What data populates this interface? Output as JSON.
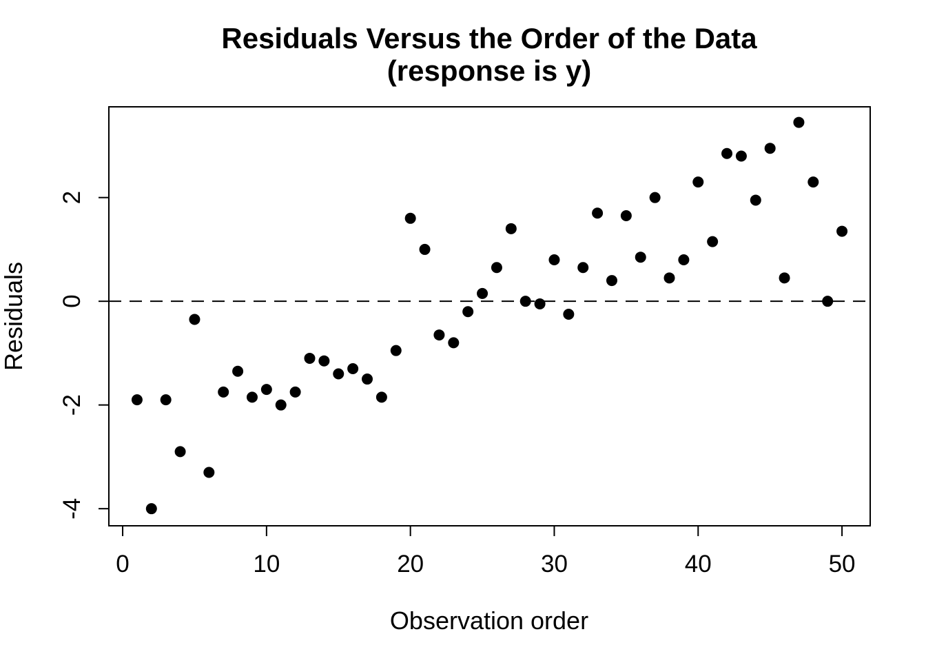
{
  "chart_data": {
    "type": "scatter",
    "title": "Residuals Versus the Order of the Data",
    "subtitle": "(response is y)",
    "xlabel": "Observation order",
    "ylabel": "Residuals",
    "x": [
      1,
      2,
      3,
      4,
      5,
      6,
      7,
      8,
      9,
      10,
      11,
      12,
      13,
      14,
      15,
      16,
      17,
      18,
      19,
      20,
      21,
      22,
      23,
      24,
      25,
      26,
      27,
      28,
      29,
      30,
      31,
      32,
      33,
      34,
      35,
      36,
      37,
      38,
      39,
      40,
      41,
      42,
      43,
      44,
      45,
      46,
      47,
      48,
      49,
      50
    ],
    "y": [
      -1.9,
      -4.0,
      -1.9,
      -2.9,
      -0.35,
      -3.3,
      -1.75,
      -1.35,
      -1.85,
      -1.7,
      -2.0,
      -1.75,
      -1.1,
      -1.15,
      -1.4,
      -1.3,
      -1.5,
      -1.85,
      -0.95,
      1.6,
      1.0,
      -0.65,
      -0.8,
      -0.2,
      0.15,
      0.65,
      1.4,
      0.0,
      -0.05,
      0.8,
      -0.25,
      0.65,
      1.7,
      0.4,
      1.65,
      0.85,
      2.0,
      0.45,
      0.8,
      2.3,
      1.15,
      2.85,
      2.8,
      1.95,
      2.95,
      0.45,
      3.45,
      2.3,
      0.0,
      1.35
    ],
    "x_ticks": [
      0,
      10,
      20,
      30,
      40,
      50
    ],
    "y_ticks": [
      -4,
      -2,
      0,
      2
    ],
    "xlim": [
      -0.96,
      51.96
    ],
    "ylim": [
      -4.33,
      3.75
    ],
    "zero_line_y": 0,
    "zero_line_style": "dashed",
    "grid": "off",
    "legend": "none",
    "point_color": "#000000",
    "line_color": "#000000",
    "background_color": "#ffffff"
  }
}
